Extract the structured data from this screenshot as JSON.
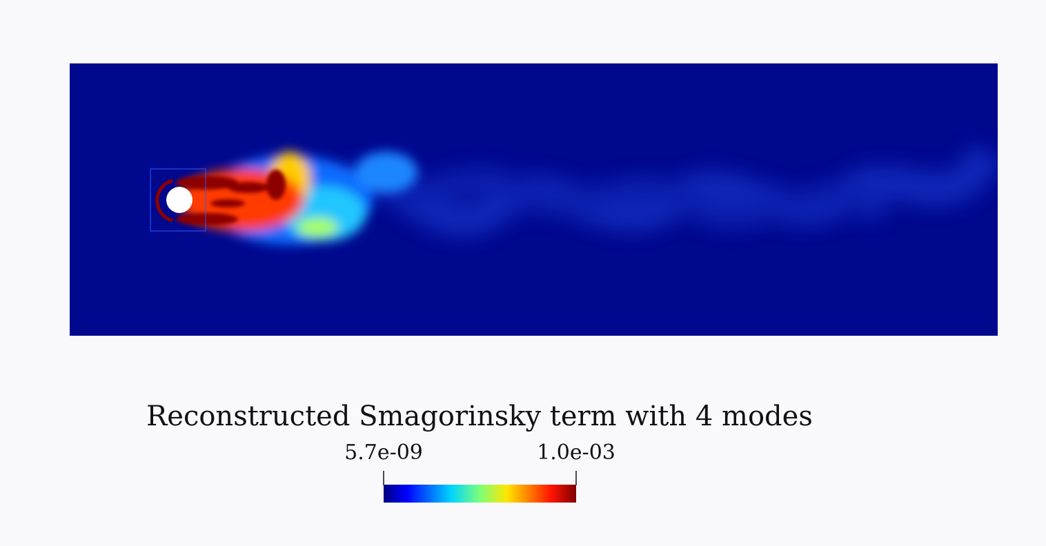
{
  "colorbar": {
    "title": "Reconstructed Smagorinsky term with 4 modes",
    "min_label": "5.7e-09",
    "max_label": "1.0e-03"
  }
}
